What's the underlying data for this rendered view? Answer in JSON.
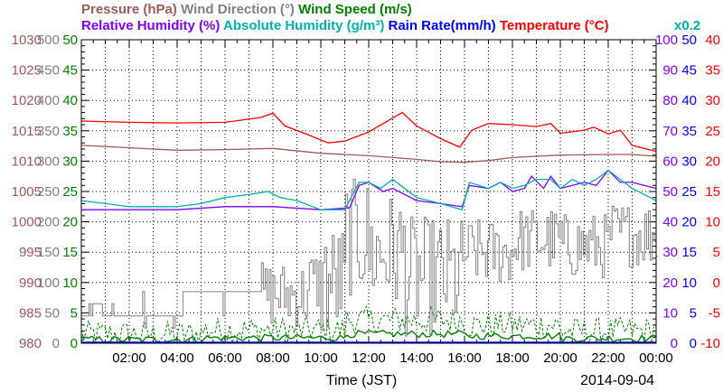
{
  "chart_data": {
    "type": "line",
    "date": "2014-09-04",
    "xlabel": "Time (JST)",
    "x_ticks": [
      "02:00",
      "04:00",
      "06:00",
      "08:00",
      "10:00",
      "12:00",
      "14:00",
      "16:00",
      "18:00",
      "20:00",
      "22:00",
      "00:00"
    ],
    "colors": {
      "pressure": "#a05a5a",
      "wind_direction": "#808080",
      "wind_speed": "#008000",
      "relative_humidity": "#8000ff",
      "absolute_humidity": "#00b0b0",
      "rain_rate": "#0000ff",
      "temperature": "#ff0000"
    },
    "titles": {
      "pressure": "Pressure (hPa)",
      "wind_direction": "Wind Direction (°)",
      "wind_speed": "Wind Speed (m/s)",
      "relative_humidity": "Relative Humidity (%)",
      "absolute_humidity": "Absolute Humidity (g/m³)",
      "rain_rate": "Rain Rate(mm/h)",
      "temperature": "Temperature (°C)",
      "scale_note": "x0.2"
    },
    "left_axes": [
      {
        "key": "pressure",
        "ticks": [
          "1030",
          "1025",
          "1020",
          "1015",
          "1010",
          "1005",
          "1000",
          "995",
          "990",
          "985",
          "980"
        ]
      },
      {
        "key": "wind_direction",
        "ticks": [
          "500",
          "450",
          "400",
          "350",
          "300",
          "250",
          "200",
          "150",
          "100",
          "50",
          "0"
        ]
      },
      {
        "key": "wind_speed",
        "ticks": [
          "50",
          "45",
          "40",
          "35",
          "30",
          "25",
          "20",
          "15",
          "10",
          "5",
          "0"
        ]
      }
    ],
    "right_axes": [
      {
        "key": "relative_humidity",
        "ticks": [
          "100",
          "90",
          "80",
          "70",
          "60",
          "50",
          "40",
          "30",
          "20",
          "10",
          "0"
        ]
      },
      {
        "key": "rain_rate",
        "ticks": [
          "50",
          "45",
          "40",
          "35",
          "30",
          "25",
          "20",
          "15",
          "10",
          "5",
          "0"
        ]
      },
      {
        "key": "temperature",
        "ticks": [
          "40",
          "35",
          "30",
          "25",
          "20",
          "15",
          "10",
          "5",
          "0",
          "-5",
          "-10"
        ]
      }
    ],
    "series": [
      {
        "key": "pressure",
        "ylim": [
          980,
          1030
        ],
        "points": [
          [
            0,
            1012.6
          ],
          [
            2,
            1012.2
          ],
          [
            4,
            1011.8
          ],
          [
            6,
            1011.9
          ],
          [
            8,
            1012.1
          ],
          [
            10,
            1011.3
          ],
          [
            12,
            1010.9
          ],
          [
            14,
            1010.3
          ],
          [
            15,
            1009.9
          ],
          [
            16,
            1009.8
          ],
          [
            17,
            1010.1
          ],
          [
            18,
            1010.6
          ],
          [
            20,
            1011.0
          ],
          [
            22,
            1011.1
          ],
          [
            23,
            1011.1
          ],
          [
            24,
            1010.8
          ]
        ]
      },
      {
        "key": "temperature",
        "ylim": [
          -10,
          40
        ],
        "points": [
          [
            0,
            26.6
          ],
          [
            2,
            26.4
          ],
          [
            4,
            26.3
          ],
          [
            6,
            26.4
          ],
          [
            7.5,
            27.2
          ],
          [
            8,
            27.9
          ],
          [
            8.5,
            25.8
          ],
          [
            9.5,
            24.3
          ],
          [
            10.3,
            23.0
          ],
          [
            11,
            23.3
          ],
          [
            12,
            24.8
          ],
          [
            13,
            27.1
          ],
          [
            13.4,
            28.0
          ],
          [
            14,
            25.8
          ],
          [
            15,
            23.7
          ],
          [
            15.8,
            22.3
          ],
          [
            16.3,
            25.1
          ],
          [
            17,
            26.2
          ],
          [
            18,
            26.0
          ],
          [
            19,
            25.7
          ],
          [
            19.6,
            26.2
          ],
          [
            20,
            24.6
          ],
          [
            21,
            25.1
          ],
          [
            21.4,
            25.6
          ],
          [
            22,
            24.5
          ],
          [
            22.5,
            25.1
          ],
          [
            23,
            22.6
          ],
          [
            24,
            21.6
          ]
        ]
      },
      {
        "key": "relative_humidity",
        "ylim": [
          0,
          100
        ],
        "points": [
          [
            0,
            44
          ],
          [
            2,
            44
          ],
          [
            4,
            44
          ],
          [
            6,
            45
          ],
          [
            8,
            45
          ],
          [
            10,
            44
          ],
          [
            11.2,
            44.6
          ],
          [
            11.6,
            52
          ],
          [
            12,
            53
          ],
          [
            12.6,
            50
          ],
          [
            13,
            51
          ],
          [
            14,
            47
          ],
          [
            15,
            46
          ],
          [
            15.9,
            45
          ],
          [
            16.2,
            52
          ],
          [
            17,
            51
          ],
          [
            17.5,
            53
          ],
          [
            18,
            50
          ],
          [
            18.5,
            51
          ],
          [
            18.8,
            55
          ],
          [
            19.3,
            51
          ],
          [
            19.6,
            55
          ],
          [
            20,
            51
          ],
          [
            21,
            53
          ],
          [
            21.5,
            52
          ],
          [
            22,
            57
          ],
          [
            22.5,
            53
          ],
          [
            23,
            53
          ],
          [
            24,
            51
          ]
        ]
      },
      {
        "key": "absolute_humidity",
        "ylim": [
          0,
          100
        ],
        "points": [
          [
            0,
            47
          ],
          [
            1,
            46
          ],
          [
            2,
            45
          ],
          [
            3,
            45
          ],
          [
            4,
            45
          ],
          [
            5,
            46
          ],
          [
            6,
            48
          ],
          [
            7,
            49
          ],
          [
            7.8,
            50
          ],
          [
            8.3,
            48
          ],
          [
            9,
            47
          ],
          [
            10,
            44
          ],
          [
            11,
            44
          ],
          [
            11.6,
            53
          ],
          [
            12,
            53
          ],
          [
            12.5,
            51
          ],
          [
            13,
            54
          ],
          [
            14,
            48
          ],
          [
            15,
            46
          ],
          [
            15.9,
            44
          ],
          [
            16.2,
            53
          ],
          [
            17,
            51
          ],
          [
            17.5,
            53
          ],
          [
            18,
            51
          ],
          [
            18.5,
            52
          ],
          [
            19,
            54
          ],
          [
            19.6,
            54
          ],
          [
            20,
            51
          ],
          [
            20.5,
            54
          ],
          [
            21,
            52
          ],
          [
            21.5,
            54
          ],
          [
            22,
            57
          ],
          [
            22.5,
            54
          ],
          [
            23,
            51
          ],
          [
            24,
            47
          ]
        ]
      }
    ],
    "wind_direction_ylim": [
      0,
      500
    ],
    "wind_speed_ylim": [
      0,
      50
    ],
    "rain_rate_ylim": [
      0,
      50
    ],
    "xlim": [
      0,
      24
    ]
  }
}
